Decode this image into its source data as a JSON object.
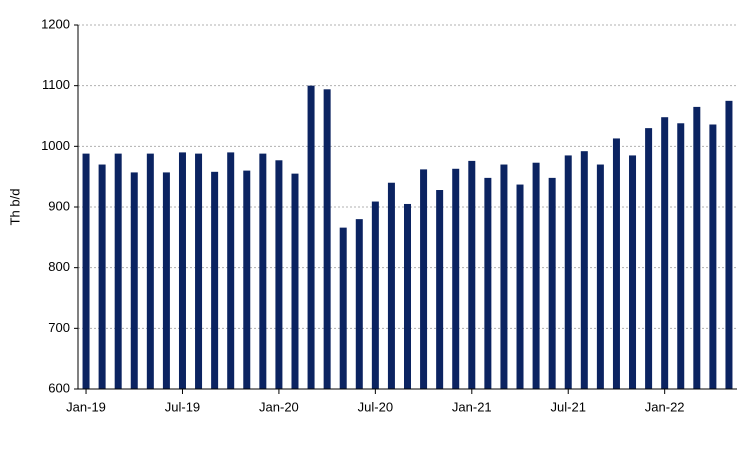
{
  "chart_data": {
    "type": "bar",
    "y_label": "Th b/d",
    "categories": [
      "Jan-19",
      null,
      null,
      null,
      null,
      null,
      "Jul-19",
      null,
      null,
      null,
      null,
      null,
      "Jan-20",
      null,
      null,
      null,
      null,
      null,
      "Jul-20",
      null,
      null,
      null,
      null,
      null,
      "Jan-21",
      null,
      null,
      null,
      null,
      null,
      "Jul-21",
      null,
      null,
      null,
      null,
      null,
      "Jan-22",
      null,
      null,
      null,
      null
    ],
    "values": [
      988,
      970,
      988,
      957,
      988,
      957,
      990,
      988,
      958,
      990,
      960,
      988,
      977,
      955,
      1100,
      1094,
      866,
      880,
      909,
      940,
      905,
      962,
      928,
      963,
      976,
      948,
      970,
      937,
      973,
      948,
      985,
      992,
      970,
      1013,
      985,
      1030,
      1048,
      1038,
      1065,
      1036,
      1075
    ],
    "color": "#0b2361",
    "ylim": [
      600,
      1200
    ],
    "yticks": [
      600,
      700,
      800,
      900,
      1000,
      1100,
      1200
    ],
    "grid": true
  }
}
